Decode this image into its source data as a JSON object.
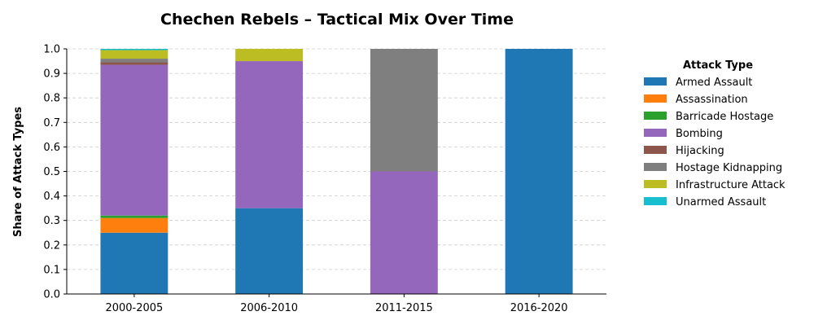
{
  "chart_data": {
    "type": "bar",
    "stacked": true,
    "title": "Chechen Rebels – Tactical Mix Over Time",
    "xlabel": "",
    "ylabel": "Share of Attack Types",
    "ylim": [
      0,
      1.0
    ],
    "yticks": [
      "0.0",
      "0.1",
      "0.2",
      "0.3",
      "0.4",
      "0.5",
      "0.6",
      "0.7",
      "0.8",
      "0.9",
      "1.0"
    ],
    "grid": "y-dashed",
    "legend_title": "Attack Type",
    "legend_position": "right",
    "categories": [
      "2000-2005",
      "2006-2010",
      "2011-2015",
      "2016-2020"
    ],
    "series": [
      {
        "name": "Armed Assault",
        "color": "#1f77b4",
        "values": [
          0.25,
          0.35,
          0.0,
          1.0
        ]
      },
      {
        "name": "Assassination",
        "color": "#ff7f0e",
        "values": [
          0.06,
          0.0,
          0.0,
          0.0
        ]
      },
      {
        "name": "Barricade Hostage",
        "color": "#2ca02c",
        "values": [
          0.01,
          0.0,
          0.0,
          0.0
        ]
      },
      {
        "name": "Bombing",
        "color": "#9467bd",
        "values": [
          0.615,
          0.6,
          0.5,
          0.0
        ]
      },
      {
        "name": "Hijacking",
        "color": "#8c564b",
        "values": [
          0.01,
          0.0,
          0.0,
          0.0
        ]
      },
      {
        "name": "Hostage Kidnapping",
        "color": "#7f7f7f",
        "values": [
          0.015,
          0.0,
          0.5,
          0.0
        ]
      },
      {
        "name": "Infrastructure Attack",
        "color": "#bcbd22",
        "values": [
          0.035,
          0.05,
          0.0,
          0.0
        ]
      },
      {
        "name": "Unarmed Assault",
        "color": "#17becf",
        "values": [
          0.005,
          0.0,
          0.0,
          0.0
        ]
      }
    ]
  }
}
